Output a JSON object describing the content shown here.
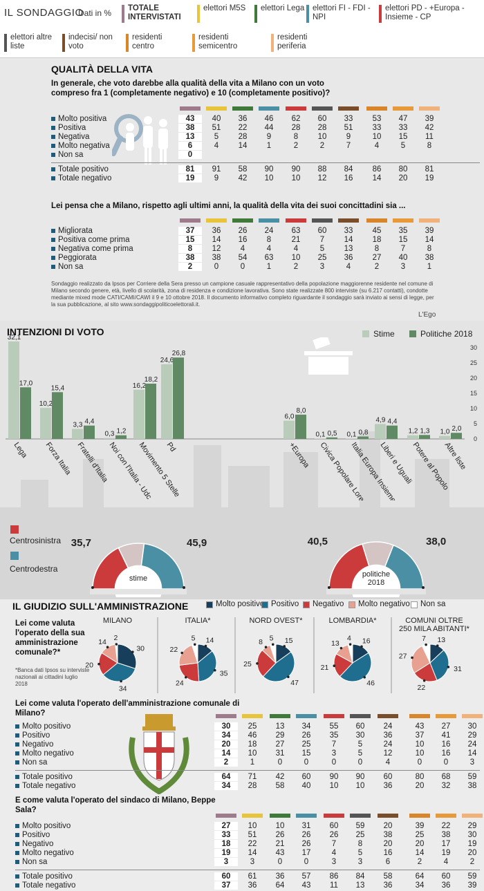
{
  "header": {
    "title": "IL SONDAGGIO",
    "subtitle": "Dati in %",
    "legend": [
      {
        "label": "TOTALE INTERVISTATI",
        "color": "#9e7b8a",
        "bold": true
      },
      {
        "label": "elettori M5S",
        "color": "#e8c43a"
      },
      {
        "label": "elettori Lega",
        "color": "#3f7a3a"
      },
      {
        "label": "elettori FI - FDI - NPI",
        "color": "#4a8fa3"
      },
      {
        "label": "elettori PD - +Europa - Insieme - CP",
        "color": "#cc3b3b"
      },
      {
        "label": "elettori altre liste",
        "color": "#555555"
      },
      {
        "label": "indecisi/ non voto",
        "color": "#7a4e2a"
      },
      {
        "label": "residenti centro",
        "color": "#d9862a"
      },
      {
        "label": "residenti semicentro",
        "color": "#e89a3a"
      },
      {
        "label": "residenti periferia",
        "color": "#f0b27a"
      }
    ]
  },
  "col_colors": [
    "#9e7b8a",
    "#e8c43a",
    "#3f7a3a",
    "#4a8fa3",
    "#cc3b3b",
    "#555555",
    "#7a4e2a",
    "#d9862a",
    "#e89a3a",
    "#f0b27a"
  ],
  "qualita": {
    "title": "QUALITÀ DELLA VITA",
    "q1": "In generale, che voto darebbe alla qualità della vita a Milano con un voto compreso fra 1 (completamente negativo) e 10 (completamente positivo)?",
    "t1": [
      {
        "label": "Molto positiva",
        "values": [
          "43",
          "40",
          "36",
          "46",
          "62",
          "60",
          "33",
          "53",
          "47",
          "39"
        ]
      },
      {
        "label": "Positiva",
        "values": [
          "38",
          "51",
          "22",
          "44",
          "28",
          "28",
          "51",
          "33",
          "33",
          "42"
        ]
      },
      {
        "label": "Negativa",
        "values": [
          "13",
          "5",
          "28",
          "9",
          "8",
          "10",
          "9",
          "10",
          "15",
          "11"
        ]
      },
      {
        "label": "Molto negativa",
        "values": [
          "6",
          "4",
          "14",
          "1",
          "2",
          "2",
          "7",
          "4",
          "5",
          "8"
        ]
      },
      {
        "label": "Non sa",
        "values": [
          "0",
          "",
          "",
          "",
          "",
          "",
          "",
          "",
          "",
          ""
        ]
      }
    ],
    "t1tot": [
      {
        "label": "Totale positivo",
        "values": [
          "81",
          "91",
          "58",
          "90",
          "90",
          "88",
          "84",
          "86",
          "80",
          "81"
        ]
      },
      {
        "label": "Totale negativo",
        "values": [
          "19",
          "9",
          "42",
          "10",
          "10",
          "12",
          "16",
          "14",
          "20",
          "19"
        ]
      }
    ],
    "q2": "Lei pensa che a Milano, rispetto agli ultimi anni, la qualità della vita dei suoi concittadini sia ...",
    "t2": [
      {
        "label": "Migliorata",
        "values": [
          "37",
          "36",
          "26",
          "24",
          "63",
          "60",
          "33",
          "45",
          "35",
          "39"
        ]
      },
      {
        "label": "Positiva come prima",
        "values": [
          "15",
          "14",
          "16",
          "8",
          "21",
          "7",
          "14",
          "18",
          "15",
          "14"
        ]
      },
      {
        "label": "Negativa come prima",
        "values": [
          "8",
          "12",
          "4",
          "4",
          "4",
          "5",
          "13",
          "8",
          "7",
          "8"
        ]
      },
      {
        "label": "Peggiorata",
        "values": [
          "38",
          "38",
          "54",
          "63",
          "10",
          "25",
          "36",
          "27",
          "40",
          "38"
        ]
      },
      {
        "label": "Non sa",
        "values": [
          "2",
          "0",
          "0",
          "1",
          "2",
          "3",
          "4",
          "2",
          "3",
          "1"
        ]
      }
    ],
    "note": "Sondaggio realizzato da Ipsos per Corriere della Sera presso un campione casuale rappresentativo della popolazione maggiorenne residente nel comune di Milano secondo genere, età, livello di scolarità, zona di residenza e condizione lavorativa. Sono state realizzate 800 interviste (su 6.217 contatti), condotte mediante mixed mode CATI/CAMI/CAWI il 9 e 10 ottobre 2018. Il documento informativo completo riguardante il sondaggio sarà inviato ai sensi di legge, per la sua pubblicazione, al sito www.sondaggipoliticoelettorali.it.",
    "credit": "L'Ego"
  },
  "chart_data": [
    {
      "type": "bar",
      "title": "INTENZIONI DI VOTO",
      "categories": [
        "Lega",
        "Forza Italia",
        "Fratelli d'Italia",
        "Noi con l'Italia - Udc",
        "Movimento 5 Stelle",
        "Pd",
        "+Europa",
        "Civica Popolare Lorenzin",
        "Italia Europa Insieme",
        "Liberi e Uguali",
        "Potere al Popolo",
        "Altre liste"
      ],
      "series": [
        {
          "name": "Stime",
          "values": [
            32.1,
            10.2,
            3.3,
            0.3,
            16.2,
            24.6,
            6.0,
            0.1,
            0.1,
            4.9,
            1.2,
            1.0
          ],
          "labels": [
            "32,1",
            "10,2",
            "3,3",
            "0,3",
            "16,2",
            "24,6",
            "6,0",
            "0,1",
            "0,1",
            "4,9",
            "1,2",
            "1,0"
          ],
          "color": "#b9cbb9"
        },
        {
          "name": "Politiche 2018",
          "values": [
            17.0,
            15.4,
            4.4,
            1.2,
            18.2,
            26.8,
            8.0,
            0.5,
            0.8,
            4.4,
            1.3,
            2.0
          ],
          "labels": [
            "17,0",
            "15,4",
            "4,4",
            "1,2",
            "18,2",
            "26,8",
            "8,0",
            "0,5",
            "0,8",
            "4,4",
            "1,3",
            "2,0"
          ],
          "color": "#5f8a64"
        }
      ],
      "yticks": [
        "0",
        "5",
        "10",
        "15",
        "20",
        "25",
        "30"
      ],
      "ylim": [
        0,
        33
      ],
      "legend": "top-right"
    },
    {
      "type": "pie",
      "title": "",
      "legend_items": [
        {
          "label": "Centrosinistra",
          "color": "#cc3b3b"
        },
        {
          "label": "Centrodestra",
          "color": "#4a8fa3"
        }
      ],
      "semis": [
        {
          "label": "stime",
          "left": "35,7",
          "right": "45,9",
          "cs": 35.7,
          "cd": 45.9
        },
        {
          "label": "politiche 2018",
          "left": "40,5",
          "right": "38,0",
          "cs": 40.5,
          "cd": 38.0
        }
      ]
    },
    {
      "type": "pie",
      "title": "IL GIUDIZIO SULL'AMMINISTRAZIONE",
      "legend_items": [
        {
          "label": "Molto positivo",
          "color": "#173e5a"
        },
        {
          "label": "Positivo",
          "color": "#1f6e8f"
        },
        {
          "label": "Negativo",
          "color": "#cc3b3b"
        },
        {
          "label": "Molto negativo",
          "color": "#e8a090"
        },
        {
          "label": "Non sa",
          "color": "#ffffff"
        }
      ],
      "pies": [
        {
          "title": "MILANO",
          "values": [
            30,
            34,
            20,
            14,
            2
          ],
          "labels": [
            "30",
            "34",
            "20",
            "14",
            "2"
          ]
        },
        {
          "title": "ITALIA*",
          "values": [
            14,
            35,
            24,
            22,
            5
          ],
          "labels": [
            "14",
            "35",
            "24",
            "22",
            "5"
          ]
        },
        {
          "title": "NORD OVEST*",
          "values": [
            15,
            47,
            25,
            8,
            5
          ],
          "labels": [
            "15",
            "47",
            "25",
            "8",
            "5"
          ]
        },
        {
          "title": "LOMBARDIA*",
          "values": [
            16,
            46,
            21,
            13,
            4
          ],
          "labels": [
            "16",
            "46",
            "21",
            "13",
            "4"
          ]
        },
        {
          "title": "COMUNI OLTRE 250 MILA ABITANTI*",
          "values": [
            13,
            31,
            22,
            27,
            7
          ],
          "labels": [
            "13",
            "31",
            "22",
            "27",
            "7"
          ]
        }
      ]
    }
  ],
  "giudizio": {
    "question_left": "Lei come valuta l'operato della sua amministrazione comunale?*",
    "footnote": "*Banca dati Ipsos su interviste nazionali ai cittadini luglio 2018",
    "q3": "Lei come valuta l'operato dell'amministrazione comunale di Milano?",
    "t3": [
      {
        "label": "Molto positivo",
        "values": [
          "30",
          "25",
          "13",
          "34",
          "55",
          "60",
          "24",
          "43",
          "27",
          "30"
        ]
      },
      {
        "label": "Positivo",
        "values": [
          "34",
          "46",
          "29",
          "26",
          "35",
          "30",
          "36",
          "37",
          "41",
          "29"
        ]
      },
      {
        "label": "Negativo",
        "values": [
          "20",
          "18",
          "27",
          "25",
          "7",
          "5",
          "24",
          "10",
          "16",
          "24"
        ]
      },
      {
        "label": "Molto negativo",
        "values": [
          "14",
          "10",
          "31",
          "15",
          "3",
          "5",
          "12",
          "10",
          "16",
          "14"
        ]
      },
      {
        "label": "Non sa",
        "values": [
          "2",
          "1",
          "0",
          "0",
          "0",
          "0",
          "4",
          "0",
          "0",
          "3"
        ]
      }
    ],
    "t3tot": [
      {
        "label": "Totale positivo",
        "values": [
          "64",
          "71",
          "42",
          "60",
          "90",
          "90",
          "60",
          "80",
          "68",
          "59"
        ]
      },
      {
        "label": "Totale negativo",
        "values": [
          "34",
          "28",
          "58",
          "40",
          "10",
          "10",
          "36",
          "20",
          "32",
          "38"
        ]
      }
    ],
    "q4": "E come valuta l'operato del sindaco di Milano, Beppe Sala?",
    "t4": [
      {
        "label": "Molto positivo",
        "values": [
          "27",
          "10",
          "10",
          "31",
          "60",
          "59",
          "20",
          "39",
          "22",
          "29"
        ]
      },
      {
        "label": "Positivo",
        "values": [
          "33",
          "51",
          "26",
          "26",
          "26",
          "25",
          "38",
          "25",
          "38",
          "30"
        ]
      },
      {
        "label": "Negativo",
        "values": [
          "18",
          "22",
          "21",
          "26",
          "7",
          "8",
          "20",
          "20",
          "17",
          "19"
        ]
      },
      {
        "label": "Molto negativo",
        "values": [
          "19",
          "14",
          "43",
          "17",
          "4",
          "5",
          "16",
          "14",
          "19",
          "20"
        ]
      },
      {
        "label": "Non sa",
        "values": [
          "3",
          "3",
          "0",
          "0",
          "3",
          "3",
          "6",
          "2",
          "4",
          "2"
        ]
      }
    ],
    "t4tot": [
      {
        "label": "Totale positivo",
        "values": [
          "60",
          "61",
          "36",
          "57",
          "86",
          "84",
          "58",
          "64",
          "60",
          "59"
        ]
      },
      {
        "label": "Totale negativo",
        "values": [
          "37",
          "36",
          "64",
          "43",
          "11",
          "13",
          "36",
          "34",
          "36",
          "39"
        ]
      }
    ]
  }
}
